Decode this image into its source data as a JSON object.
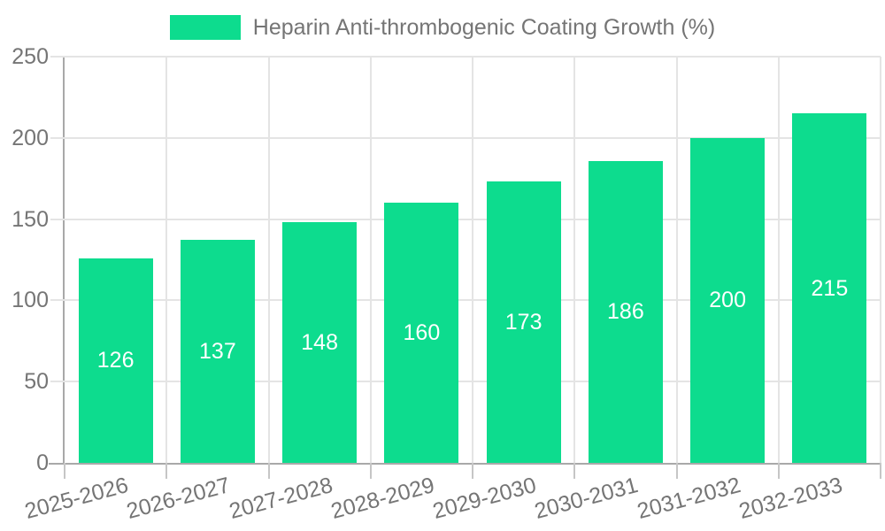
{
  "chart_data": {
    "type": "bar",
    "legend": "Heparin Anti-thrombogenic Coating Growth (%)",
    "legend_position": "top",
    "categories": [
      "2025-2026",
      "2026-2027",
      "2027-2028",
      "2028-2029",
      "2029-2030",
      "2030-2031",
      "2031-2032",
      "2032-2033"
    ],
    "values": [
      126,
      137,
      148,
      160,
      173,
      186,
      200,
      215
    ],
    "xlabel": "",
    "ylabel": "",
    "ylim": [
      0,
      250
    ],
    "yticks": [
      0,
      50,
      100,
      150,
      200,
      250
    ],
    "grid": true,
    "value_labels": "centered-white"
  },
  "colors": {
    "bar": "#0ddc8e",
    "value_text": "#ffffff",
    "tick_text": "#757575",
    "legend_text": "#757575",
    "grid_line": "#e4e4e4",
    "axis_line": "#a9a9a9",
    "tick_line": "#c6c6c6",
    "background": "#ffffff"
  }
}
